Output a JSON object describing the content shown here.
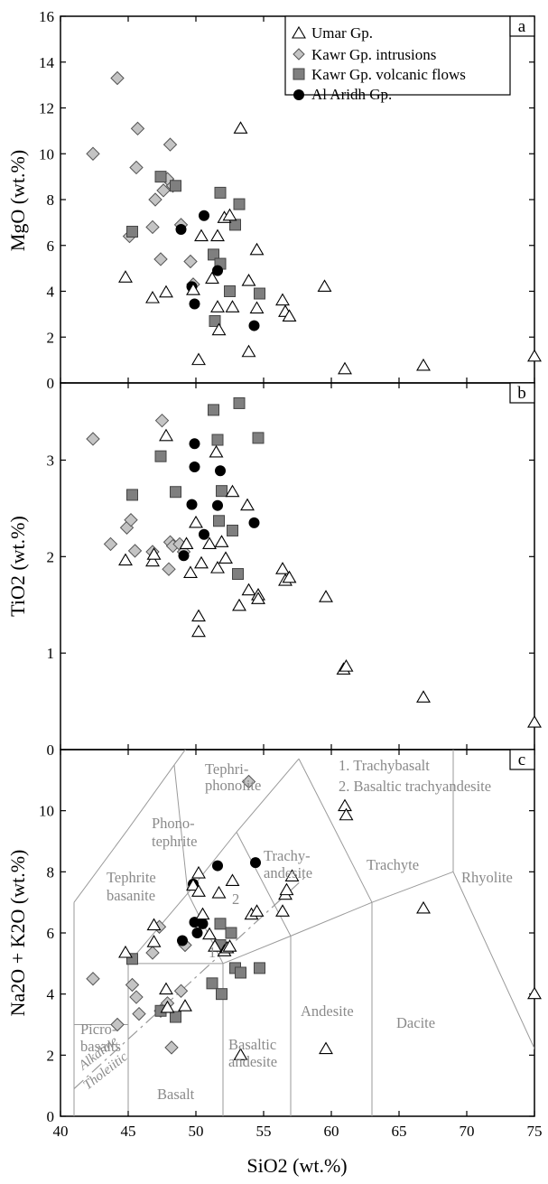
{
  "chart_data": [
    {
      "panel": "a",
      "type": "scatter",
      "ylabel": "MgO (wt.%)",
      "xlim": [
        40,
        75
      ],
      "ylim": [
        0,
        16
      ],
      "yticks": [
        0,
        2,
        4,
        6,
        8,
        10,
        12,
        14,
        16
      ],
      "legend_position": "top-right",
      "legend": [
        "Umar Gp.",
        "Kawr Gp. intrusions",
        "Kawr Gp. volcanic flows",
        "Al Aridh Gp."
      ],
      "series": [
        {
          "name": "Umar Gp.",
          "marker": "triangle",
          "points": [
            [
              44.8,
              4.6
            ],
            [
              46.8,
              3.7
            ],
            [
              47.8,
              3.95
            ],
            [
              49.8,
              4.05
            ],
            [
              50.2,
              1.0
            ],
            [
              50.4,
              6.4
            ],
            [
              51.2,
              4.55
            ],
            [
              51.6,
              6.4
            ],
            [
              51.6,
              3.3
            ],
            [
              51.7,
              2.3
            ],
            [
              52.1,
              7.2
            ],
            [
              52.5,
              7.3
            ],
            [
              52.7,
              3.3
            ],
            [
              53.3,
              11.1
            ],
            [
              53.9,
              4.45
            ],
            [
              53.9,
              1.35
            ],
            [
              54.5,
              5.8
            ],
            [
              54.5,
              3.25
            ],
            [
              56.4,
              3.6
            ],
            [
              56.6,
              3.1
            ],
            [
              56.9,
              2.9
            ],
            [
              59.5,
              4.2
            ],
            [
              61.0,
              0.6
            ],
            [
              66.8,
              0.75
            ],
            [
              75.0,
              1.15
            ]
          ]
        },
        {
          "name": "Kawr Gp. intrusions",
          "marker": "diamond",
          "points": [
            [
              42.4,
              10.0
            ],
            [
              44.2,
              13.3
            ],
            [
              45.1,
              6.4
            ],
            [
              45.6,
              9.4
            ],
            [
              45.7,
              11.1
            ],
            [
              46.8,
              6.8
            ],
            [
              47.0,
              8.0
            ],
            [
              47.4,
              5.4
            ],
            [
              47.6,
              8.4
            ],
            [
              47.9,
              8.9
            ],
            [
              48.1,
              10.4
            ],
            [
              48.3,
              8.6
            ],
            [
              48.9,
              6.9
            ],
            [
              49.6,
              5.3
            ],
            [
              49.8,
              4.3
            ]
          ]
        },
        {
          "name": "Kawr Gp. volcanic flows",
          "marker": "square",
          "points": [
            [
              45.3,
              6.6
            ],
            [
              47.4,
              9.0
            ],
            [
              48.5,
              8.6
            ],
            [
              51.3,
              5.6
            ],
            [
              51.4,
              2.7
            ],
            [
              51.8,
              8.3
            ],
            [
              51.8,
              5.2
            ],
            [
              52.5,
              4.0
            ],
            [
              52.9,
              6.9
            ],
            [
              53.2,
              7.8
            ],
            [
              54.7,
              3.9
            ]
          ]
        },
        {
          "name": "Al Aridh Gp.",
          "marker": "circle",
          "points": [
            [
              48.9,
              6.7
            ],
            [
              49.7,
              4.2
            ],
            [
              49.9,
              3.45
            ],
            [
              50.6,
              7.3
            ],
            [
              51.6,
              4.9
            ],
            [
              54.3,
              2.5
            ]
          ]
        }
      ]
    },
    {
      "panel": "b",
      "type": "scatter",
      "ylabel": "TiO2 (wt.%)",
      "xlim": [
        40,
        75
      ],
      "ylim": [
        0,
        3.8
      ],
      "yticks": [
        0,
        1,
        2,
        3
      ],
      "series": [
        {
          "name": "Umar Gp.",
          "marker": "triangle",
          "points": [
            [
              44.8,
              1.96
            ],
            [
              46.8,
              1.95
            ],
            [
              46.9,
              2.02
            ],
            [
              47.8,
              3.25
            ],
            [
              49.3,
              2.13
            ],
            [
              49.6,
              1.83
            ],
            [
              50.0,
              2.35
            ],
            [
              50.2,
              1.38
            ],
            [
              50.2,
              1.22
            ],
            [
              50.4,
              1.93
            ],
            [
              51.0,
              2.13
            ],
            [
              51.5,
              3.08
            ],
            [
              51.6,
              1.88
            ],
            [
              51.9,
              2.15
            ],
            [
              52.2,
              1.98
            ],
            [
              52.7,
              2.67
            ],
            [
              53.2,
              1.49
            ],
            [
              53.8,
              2.53
            ],
            [
              53.9,
              1.65
            ],
            [
              54.6,
              1.6
            ],
            [
              54.6,
              1.56
            ],
            [
              56.4,
              1.87
            ],
            [
              56.6,
              1.75
            ],
            [
              56.9,
              1.78
            ],
            [
              59.6,
              1.58
            ],
            [
              60.9,
              0.83
            ],
            [
              61.1,
              0.86
            ],
            [
              66.8,
              0.54
            ],
            [
              75.0,
              0.28
            ]
          ]
        },
        {
          "name": "Kawr Gp. intrusions",
          "marker": "diamond",
          "points": [
            [
              42.4,
              3.22
            ],
            [
              43.7,
              2.13
            ],
            [
              44.9,
              2.3
            ],
            [
              45.2,
              2.38
            ],
            [
              45.5,
              2.06
            ],
            [
              46.8,
              2.05
            ],
            [
              47.5,
              3.41
            ],
            [
              48.1,
              2.15
            ],
            [
              48.3,
              2.11
            ],
            [
              48.0,
              1.87
            ],
            [
              48.8,
              2.13
            ],
            [
              49.1,
              2.05
            ]
          ]
        },
        {
          "name": "Kawr Gp. volcanic flows",
          "marker": "square",
          "points": [
            [
              45.3,
              2.64
            ],
            [
              47.4,
              3.04
            ],
            [
              48.5,
              2.67
            ],
            [
              51.3,
              3.52
            ],
            [
              51.6,
              3.21
            ],
            [
              51.7,
              2.37
            ],
            [
              51.9,
              2.68
            ],
            [
              52.7,
              2.27
            ],
            [
              53.1,
              1.82
            ],
            [
              53.2,
              3.59
            ],
            [
              54.6,
              3.23
            ]
          ]
        },
        {
          "name": "Al Aridh Gp.",
          "marker": "circle",
          "points": [
            [
              49.1,
              2.01
            ],
            [
              49.7,
              2.54
            ],
            [
              49.9,
              3.17
            ],
            [
              49.9,
              2.93
            ],
            [
              50.6,
              2.23
            ],
            [
              51.6,
              2.53
            ],
            [
              51.8,
              2.89
            ],
            [
              54.3,
              2.35
            ]
          ]
        }
      ]
    },
    {
      "panel": "c",
      "type": "scatter",
      "subtype": "TAS diagram",
      "xlabel": "SiO2 (wt.%)",
      "ylabel": "Na2O + K2O (wt.%)",
      "xlim": [
        40,
        75
      ],
      "ylim": [
        0,
        12
      ],
      "xticks": [
        40,
        45,
        50,
        55,
        60,
        65,
        70,
        75
      ],
      "yticks": [
        0,
        2,
        4,
        6,
        8,
        10
      ],
      "field_labels": [
        "Tephri-",
        "phonolite",
        "Phono-",
        "tephrite",
        "Tephrite",
        "basanite",
        "Trachy-",
        "andesite",
        "Trachyte",
        "Rhyolite",
        "Picro-",
        "basalts",
        "Basalt",
        "Basaltic",
        "andesite",
        "Andesite",
        "Dacite",
        "1",
        "2"
      ],
      "notes": [
        "1. Trachybasalt",
        "2. Basaltic trachyandesite"
      ],
      "divider_labels": [
        "Alkaline",
        "Tholeiitic"
      ],
      "series": [
        {
          "name": "Umar Gp.",
          "marker": "triangle",
          "points": [
            [
              44.8,
              5.35
            ],
            [
              46.9,
              6.25
            ],
            [
              46.9,
              5.7
            ],
            [
              47.8,
              4.15
            ],
            [
              47.9,
              3.55
            ],
            [
              49.2,
              3.6
            ],
            [
              49.8,
              7.55
            ],
            [
              50.2,
              7.95
            ],
            [
              50.2,
              7.35
            ],
            [
              50.5,
              6.6
            ],
            [
              51.0,
              5.95
            ],
            [
              51.4,
              5.55
            ],
            [
              51.7,
              7.3
            ],
            [
              52.1,
              5.4
            ],
            [
              52.3,
              5.5
            ],
            [
              52.5,
              5.55
            ],
            [
              52.7,
              7.7
            ],
            [
              53.3,
              2.0
            ],
            [
              54.1,
              6.6
            ],
            [
              54.5,
              6.7
            ],
            [
              56.4,
              6.7
            ],
            [
              56.6,
              7.25
            ],
            [
              56.7,
              7.4
            ],
            [
              57.1,
              7.85
            ],
            [
              59.6,
              2.2
            ],
            [
              61.0,
              10.15
            ],
            [
              61.1,
              9.85
            ],
            [
              66.8,
              6.8
            ],
            [
              75.0,
              4.0
            ]
          ]
        },
        {
          "name": "Kawr Gp. intrusions",
          "marker": "diamond",
          "points": [
            [
              42.4,
              4.5
            ],
            [
              44.2,
              3.0
            ],
            [
              45.3,
              4.3
            ],
            [
              45.6,
              3.9
            ],
            [
              45.8,
              3.35
            ],
            [
              46.8,
              5.35
            ],
            [
              47.3,
              6.2
            ],
            [
              47.4,
              3.45
            ],
            [
              47.9,
              3.7
            ],
            [
              48.2,
              2.25
            ],
            [
              48.9,
              4.1
            ],
            [
              49.2,
              5.6
            ],
            [
              53.9,
              10.95
            ]
          ]
        },
        {
          "name": "Kawr Gp. volcanic flows",
          "marker": "square",
          "points": [
            [
              45.3,
              5.15
            ],
            [
              47.4,
              3.45
            ],
            [
              48.5,
              3.25
            ],
            [
              51.2,
              4.35
            ],
            [
              51.8,
              6.3
            ],
            [
              51.8,
              5.6
            ],
            [
              51.9,
              4.0
            ],
            [
              52.6,
              6.0
            ],
            [
              52.9,
              4.85
            ],
            [
              53.3,
              4.7
            ],
            [
              54.7,
              4.85
            ]
          ]
        },
        {
          "name": "Al Aridh Gp.",
          "marker": "circle",
          "points": [
            [
              49.0,
              5.75
            ],
            [
              49.8,
              7.6
            ],
            [
              49.9,
              6.35
            ],
            [
              50.1,
              6.0
            ],
            [
              50.5,
              6.3
            ],
            [
              51.6,
              8.2
            ],
            [
              54.4,
              8.3
            ]
          ]
        }
      ]
    }
  ],
  "colors": {
    "umar_fill": "#ffffff",
    "intrusions_fill": "#c4c4c4",
    "volcanic_fill": "#7f7f7f",
    "aridh_fill": "#000000",
    "field_line": "#9a9a9a",
    "field_text": "#8a8a8a"
  }
}
